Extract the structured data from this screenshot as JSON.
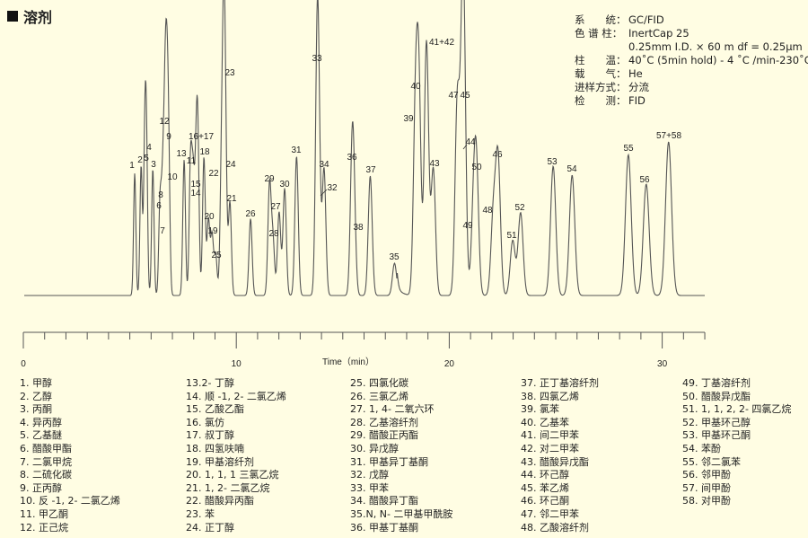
{
  "title": "溶剂",
  "info": [
    {
      "label": "系　　统：",
      "value": "GC/FID"
    },
    {
      "label": "色 谱 柱：",
      "value": "InertCap 25"
    },
    {
      "label": "",
      "value": "0.25mm I.D. × 60 m df = 0.25μm"
    },
    {
      "label": "柱　　温：",
      "value": "40˚C (5min hold) - 4 ˚C /min-230˚C"
    },
    {
      "label": "载　　气：",
      "value": "He"
    },
    {
      "label": "进样方式：",
      "value": "分流"
    },
    {
      "label": "检　　测：",
      "value": "FID"
    }
  ],
  "chart_data": {
    "type": "line",
    "title": "",
    "xlabel": "Time（min）",
    "ylabel": "",
    "xlim": [
      0,
      32
    ],
    "xticks_major": [
      0,
      10,
      20,
      30
    ],
    "xtick_labels": [
      "0",
      "10",
      "20",
      "30"
    ],
    "xticks_minor_step": 1,
    "grid": false,
    "line_color": "#555555",
    "peaks": [
      {
        "label": "1",
        "time": 5.23,
        "height": 47.7
      },
      {
        "label": "2",
        "time": 5.53,
        "height": 50.5
      },
      {
        "label": "5",
        "time": 5.7,
        "height": 54.0
      },
      {
        "label": "4",
        "time": 5.78,
        "height": 55.8
      },
      {
        "label": "3",
        "time": 6.08,
        "height": 49.5
      },
      {
        "label": "6",
        "time": 6.41,
        "height": 32.0
      },
      {
        "label": "7",
        "time": 6.5,
        "height": 23.5
      },
      {
        "label": "8",
        "time": 6.58,
        "height": 37.5
      },
      {
        "label": "12",
        "time": 6.67,
        "height": 66.0
      },
      {
        "label": "9",
        "time": 6.75,
        "height": 60.0
      },
      {
        "label": "10",
        "time": 6.83,
        "height": 45.0
      },
      {
        "label": "13",
        "time": 7.55,
        "height": 53.0
      },
      {
        "label": "11",
        "time": 7.85,
        "height": 51.0
      },
      {
        "label": "15",
        "time": 7.97,
        "height": 42.5
      },
      {
        "label": "14",
        "time": 8.1,
        "height": 38.0
      },
      {
        "label": "16+17",
        "time": 8.19,
        "height": 60.0
      },
      {
        "label": "18",
        "time": 8.48,
        "height": 54.0
      },
      {
        "label": "20",
        "time": 8.69,
        "height": 29.5
      },
      {
        "label": "19",
        "time": 8.86,
        "height": 23.5
      },
      {
        "label": "25",
        "time": 9.03,
        "height": 16.0
      },
      {
        "label": "22",
        "time": 9.3,
        "height": 44.0
      },
      {
        "label": "23",
        "time": 9.41,
        "height": 88.4
      },
      {
        "label": "24",
        "time": 9.49,
        "height": 49.5
      },
      {
        "label": "21",
        "time": 9.7,
        "height": 36.5
      },
      {
        "label": "26",
        "time": 10.67,
        "height": 30.0
      },
      {
        "label": "29",
        "time": 11.56,
        "height": 43.0
      },
      {
        "label": "28",
        "time": 11.72,
        "height": 21.4
      },
      {
        "label": "27",
        "time": 12.01,
        "height": 32.6
      },
      {
        "label": "30",
        "time": 12.27,
        "height": 41.8
      },
      {
        "label": "31",
        "time": 12.83,
        "height": 54.4
      },
      {
        "label": "33",
        "time": 13.8,
        "height": 91.2
      },
      {
        "label": "32",
        "time": 13.88,
        "height": 37.5
      },
      {
        "label": "34",
        "time": 14.12,
        "height": 49.5
      },
      {
        "label": "36",
        "time": 15.44,
        "height": 51.6
      },
      {
        "label": "38",
        "time": 15.53,
        "height": 24.2
      },
      {
        "label": "37",
        "time": 16.29,
        "height": 46.7
      },
      {
        "label": "35",
        "time": 17.43,
        "height": 12.6
      },
      {
        "label": "39",
        "time": 18.41,
        "height": 67.0
      },
      {
        "label": "40",
        "time": 18.57,
        "height": 79.6
      },
      {
        "label": "41+42",
        "time": 18.93,
        "height": 99.3
      },
      {
        "label": "43",
        "time": 19.25,
        "height": 49.5
      },
      {
        "label": "47",
        "time": 20.38,
        "height": 76.0
      },
      {
        "label": "44",
        "time": 20.63,
        "height": 57.0
      },
      {
        "label": "45",
        "time": 20.67,
        "height": 75.8
      },
      {
        "label": "49",
        "time": 21.13,
        "height": 25.6
      },
      {
        "label": "50",
        "time": 21.27,
        "height": 48.8
      },
      {
        "label": "48",
        "time": 22.07,
        "height": 30.9
      },
      {
        "label": "46",
        "time": 22.29,
        "height": 53.0
      },
      {
        "label": "51",
        "time": 22.98,
        "height": 21.4
      },
      {
        "label": "52",
        "time": 23.35,
        "height": 32.3
      },
      {
        "label": "53",
        "time": 24.88,
        "height": 50.5
      },
      {
        "label": "54",
        "time": 25.77,
        "height": 47.0
      },
      {
        "label": "55",
        "time": 28.41,
        "height": 55.0
      },
      {
        "label": "56",
        "time": 29.25,
        "height": 43.5
      },
      {
        "label": "57+58",
        "time": 30.3,
        "height": 60.0
      }
    ]
  },
  "legend_columns": [
    [
      "1. 甲醇",
      "2. 乙醇",
      "3. 丙酮",
      "4. 异丙醇",
      "5. 乙基醚",
      "6. 醋酸甲酯",
      "7. 二氯甲烷",
      "8. 二硫化碳",
      "9. 正丙醇",
      "10. 反 -1, 2- 二氯乙烯",
      "11. 甲乙酮",
      "12. 正己烷"
    ],
    [
      "13.2- 丁醇",
      "14. 顺 -1, 2- 二氯乙烯",
      "15. 乙酸乙酯",
      "16. 氯仿",
      "17. 叔丁醇",
      "18. 四氢呋喃",
      "19. 甲基溶纤剂",
      "20. 1, 1, 1 三氯乙烷",
      "21. 1, 2- 二氯乙烷",
      "22. 醋酸异丙酯",
      "23. 苯",
      "24. 正丁醇"
    ],
    [
      "25. 四氯化碳",
      "26. 三氯乙烯",
      "27. 1, 4- 二氧六环",
      "28. 乙基溶纤剂",
      "29. 醋酸正丙酯",
      "30. 异戊醇",
      "31. 甲基异丁基酮",
      "32. 戊醇",
      "33. 甲苯",
      "34. 醋酸异丁酯",
      "35.N, N- 二甲基甲酰胺",
      "36. 甲基丁基酮"
    ],
    [
      "37. 正丁基溶纤剂",
      "38. 四氯乙烯",
      "39. 氯苯",
      "40. 乙基苯",
      "41. 间二甲苯",
      "42. 对二甲苯",
      "43. 醋酸异戊酯",
      "44. 环己醇",
      "45. 苯乙烯",
      "46. 环己酮",
      "47. 邻二甲苯",
      "48. 乙酸溶纤剂"
    ],
    [
      "49. 丁基溶纤剂",
      "50. 醋酸异戊酯",
      "51. 1, 1, 2, 2- 四氯乙烷",
      "52. 甲基环己醇",
      "53. 甲基环己酮",
      "54. 苯酚",
      "55. 邻二氯苯",
      "56. 邻甲酚",
      "57. 间甲酚",
      "58. 对甲酚"
    ]
  ]
}
